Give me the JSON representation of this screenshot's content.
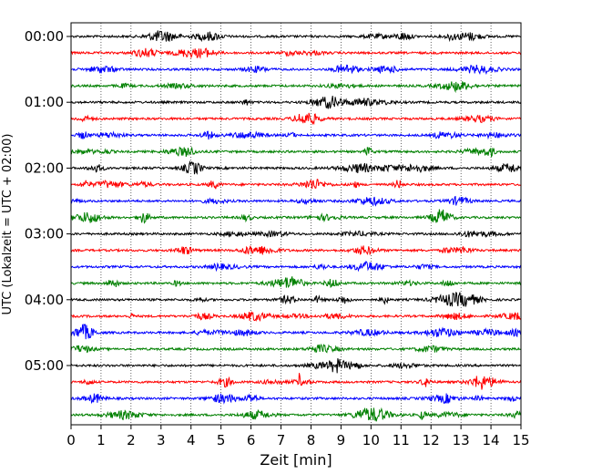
{
  "chart_data": {
    "type": "line",
    "xlabel": "Zeit  [min]",
    "ylabel": "UTC (Lokalzeit = UTC + 02:00)",
    "xlim": [
      0,
      15
    ],
    "xticks": [
      0,
      1,
      2,
      3,
      4,
      5,
      6,
      7,
      8,
      9,
      10,
      11,
      12,
      13,
      14,
      15
    ],
    "vertical_gridlines": true,
    "gridline_style": "dotted",
    "row_interval_minutes": 15,
    "rows": 24,
    "row_color_cycle": [
      "#000000",
      "#ff0000",
      "#0000ff",
      "#008000"
    ],
    "yticks": [
      {
        "label": "00:00",
        "row": 0
      },
      {
        "label": "01:00",
        "row": 4
      },
      {
        "label": "02:00",
        "row": 8
      },
      {
        "label": "03:00",
        "row": 12
      },
      {
        "label": "04:00",
        "row": 16
      },
      {
        "label": "05:00",
        "row": 20
      }
    ],
    "notable_events": [
      {
        "row": 21,
        "minute": 7.6,
        "description": "spike"
      }
    ]
  }
}
